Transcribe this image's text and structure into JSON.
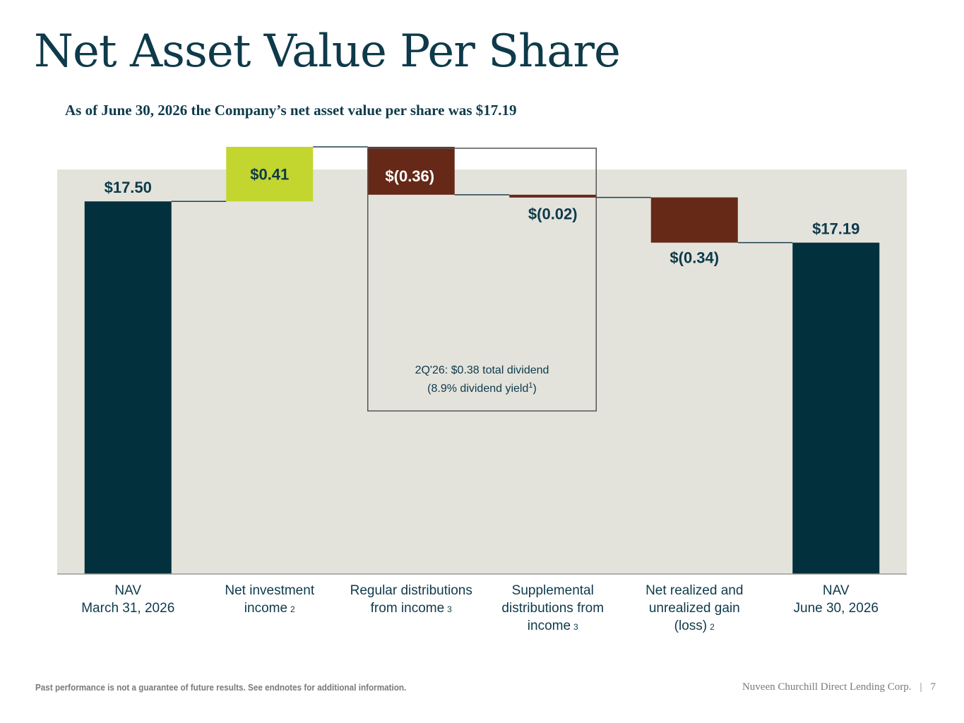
{
  "page": {
    "title": "Net Asset Value Per Share",
    "subtitle": "As of June 30, 2026 the Company’s net asset value per share was $17.19"
  },
  "chart_data": {
    "type": "bar",
    "subtype": "waterfall",
    "ylim": [
      14.7,
      17.74
    ],
    "grid": false,
    "categories": [
      {
        "lines": [
          "NAV",
          "March 31, 2026"
        ],
        "sup": ""
      },
      {
        "lines": [
          "Net investment",
          "income"
        ],
        "sup": "2"
      },
      {
        "lines": [
          "Regular distributions",
          "from income"
        ],
        "sup": "3"
      },
      {
        "lines": [
          "Supplemental",
          "distributions from",
          "income"
        ],
        "sup": "3"
      },
      {
        "lines": [
          "Net realized and",
          "unrealized gain",
          "(loss)"
        ],
        "sup": "2"
      },
      {
        "lines": [
          "NAV",
          "June 30, 2026"
        ],
        "sup": ""
      }
    ],
    "bars": [
      {
        "kind": "total",
        "start": 0,
        "end": 17.5,
        "label": "$17.50"
      },
      {
        "kind": "increase",
        "start": 17.5,
        "end": 17.91,
        "label": "$0.41"
      },
      {
        "kind": "decrease",
        "start": 17.91,
        "end": 17.55,
        "label": "$(0.36)"
      },
      {
        "kind": "decrease",
        "start": 17.55,
        "end": 17.53,
        "label": "$(0.02)"
      },
      {
        "kind": "decrease",
        "start": 17.53,
        "end": 17.19,
        "label": "$(0.34)"
      },
      {
        "kind": "total",
        "start": 0,
        "end": 17.19,
        "label": "$17.19"
      }
    ],
    "annotation": {
      "line1": "2Q'26: $0.38 total dividend",
      "line2_pre": "(8.9% dividend yield",
      "line2_sup": "1",
      "line2_post": ")"
    },
    "colors": {
      "background": "#e3e3dc",
      "total": "#02303d",
      "increase": "#c3d62f",
      "decrease": "#662918",
      "label": "#0e3a4a",
      "connector": "#1d3f4f",
      "axis": "#9a9a9a",
      "category_text": "#0e3a4a"
    }
  },
  "footer": {
    "disclaimer": "Past performance is not a guarantee of future results. See endnotes for additional information.",
    "company": "Nuveen Churchill Direct Lending Corp.",
    "separator": "|",
    "page_number": "7"
  }
}
